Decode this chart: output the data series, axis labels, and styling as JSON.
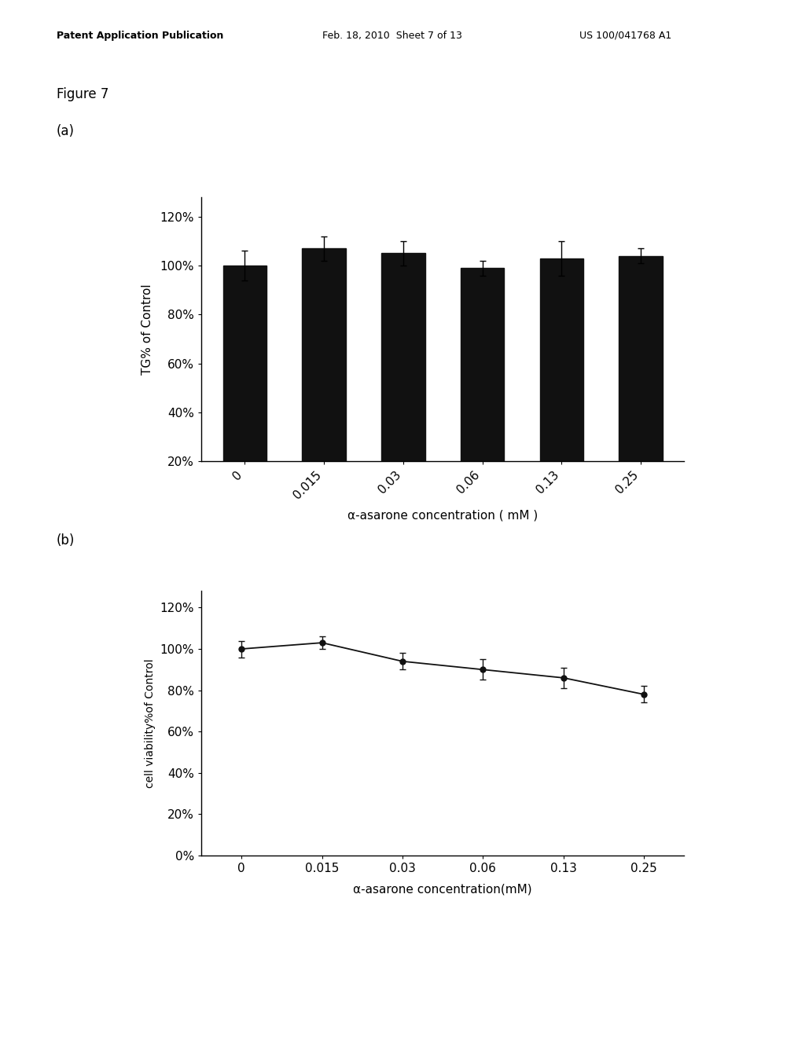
{
  "figure_label": "Figure 7",
  "panel_a_label": "(a)",
  "panel_b_label": "(b)",
  "bar_x_labels": [
    "0",
    "0.015",
    "0.03",
    "0.06",
    "0.13",
    "0.25"
  ],
  "bar_values": [
    100,
    107,
    105,
    99,
    103,
    104
  ],
  "bar_errors": [
    6,
    5,
    5,
    3,
    7,
    3
  ],
  "bar_ylabel": "TG% of Control",
  "bar_xlabel": "α-asarone concentration ( mM )",
  "bar_yticks": [
    20,
    40,
    60,
    80,
    100,
    120
  ],
  "bar_ytick_labels": [
    "20%",
    "40%",
    "60%",
    "80%",
    "100%",
    "120%"
  ],
  "bar_ylim": [
    20,
    128
  ],
  "bar_color": "#111111",
  "line_x_labels": [
    "0",
    "0.015",
    "0.03",
    "0.06",
    "0.13",
    "0.25"
  ],
  "line_values": [
    100,
    103,
    94,
    90,
    86,
    78
  ],
  "line_errors": [
    4,
    3,
    4,
    5,
    5,
    4
  ],
  "line_ylabel": "cell viability%of Control",
  "line_xlabel": "α-asarone concentration(mM)",
  "line_yticks": [
    0,
    20,
    40,
    60,
    80,
    100,
    120
  ],
  "line_ytick_labels": [
    "0%",
    "20%",
    "40%",
    "60%",
    "80%",
    "100%",
    "120%"
  ],
  "line_ylim": [
    0,
    128
  ],
  "line_color": "#111111",
  "marker_color": "#111111",
  "background_color": "#ffffff",
  "text_color": "#000000"
}
